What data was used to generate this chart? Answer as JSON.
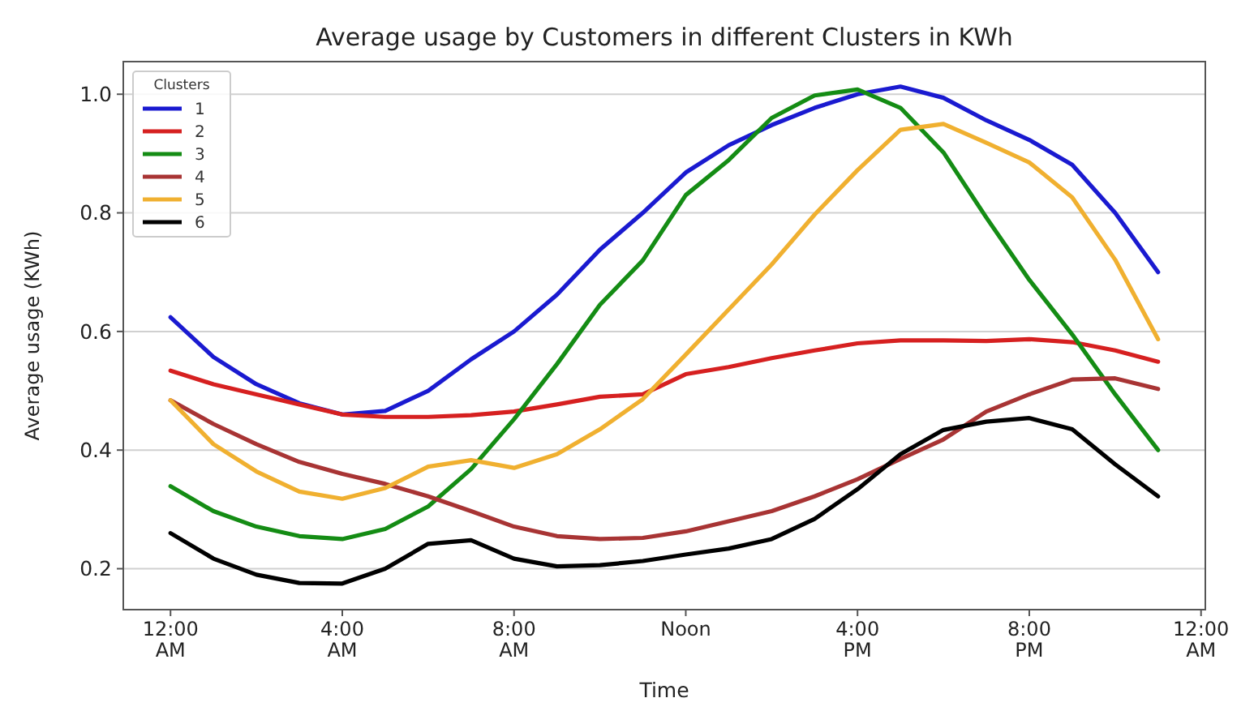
{
  "chart_data": {
    "type": "line",
    "title": "Average usage by Customers in different Clusters in KWh",
    "xlabel": "Time",
    "ylabel": "Average usage (KWh)",
    "legend_title": "Clusters",
    "x": [
      0,
      1,
      2,
      3,
      4,
      5,
      6,
      7,
      8,
      9,
      10,
      11,
      12,
      13,
      14,
      15,
      16,
      17,
      18,
      19,
      20,
      21,
      22,
      23
    ],
    "series": [
      {
        "name": "1",
        "color": "#1a1ad0",
        "values": [
          0.624,
          0.557,
          0.511,
          0.479,
          0.46,
          0.466,
          0.5,
          0.553,
          0.6,
          0.662,
          0.738,
          0.8,
          0.868,
          0.914,
          0.948,
          0.977,
          1.0,
          1.013,
          0.994,
          0.956,
          0.923,
          0.881,
          0.8,
          0.7
        ]
      },
      {
        "name": "2",
        "color": "#d62020",
        "values": [
          0.534,
          0.511,
          0.494,
          0.477,
          0.46,
          0.456,
          0.456,
          0.459,
          0.465,
          0.477,
          0.49,
          0.494,
          0.528,
          0.54,
          0.555,
          0.568,
          0.58,
          0.585,
          0.585,
          0.584,
          0.587,
          0.582,
          0.568,
          0.549
        ]
      },
      {
        "name": "3",
        "color": "#148c14",
        "values": [
          0.339,
          0.297,
          0.271,
          0.255,
          0.25,
          0.267,
          0.305,
          0.368,
          0.452,
          0.545,
          0.645,
          0.72,
          0.83,
          0.889,
          0.96,
          0.998,
          1.008,
          0.977,
          0.902,
          0.792,
          0.687,
          0.595,
          0.494,
          0.4
        ]
      },
      {
        "name": "4",
        "color": "#a83434",
        "values": [
          0.484,
          0.444,
          0.41,
          0.38,
          0.36,
          0.343,
          0.322,
          0.297,
          0.271,
          0.255,
          0.25,
          0.252,
          0.263,
          0.28,
          0.297,
          0.322,
          0.351,
          0.385,
          0.418,
          0.465,
          0.494,
          0.519,
          0.521,
          0.503
        ]
      },
      {
        "name": "5",
        "color": "#f0b030",
        "values": [
          0.484,
          0.41,
          0.364,
          0.33,
          0.318,
          0.336,
          0.372,
          0.383,
          0.37,
          0.393,
          0.435,
          0.486,
          0.561,
          0.637,
          0.713,
          0.797,
          0.872,
          0.94,
          0.95,
          0.918,
          0.885,
          0.826,
          0.721,
          0.587
        ]
      },
      {
        "name": "6",
        "color": "#000000",
        "values": [
          0.26,
          0.217,
          0.19,
          0.176,
          0.175,
          0.2,
          0.242,
          0.248,
          0.217,
          0.204,
          0.206,
          0.213,
          0.224,
          0.234,
          0.25,
          0.284,
          0.334,
          0.393,
          0.434,
          0.448,
          0.454,
          0.435,
          0.376,
          0.322
        ]
      }
    ],
    "xlim": [
      -1.1,
      24.1
    ],
    "ylim": [
      0.131,
      1.055
    ],
    "xticks": [
      {
        "value": 0,
        "label": "12:00\nAM"
      },
      {
        "value": 4,
        "label": "4:00\nAM"
      },
      {
        "value": 8,
        "label": "8:00\nAM"
      },
      {
        "value": 12,
        "label": "Noon"
      },
      {
        "value": 16,
        "label": "4:00\nPM"
      },
      {
        "value": 20,
        "label": "8:00\nPM"
      },
      {
        "value": 24,
        "label": "12:00\nAM"
      }
    ],
    "yticks": [
      0.2,
      0.4,
      0.6,
      0.8,
      {
        "value": 1,
        "label": "1.0"
      }
    ],
    "grid": "y",
    "legend": "top left",
    "marker": "none",
    "line_style": "solid"
  }
}
